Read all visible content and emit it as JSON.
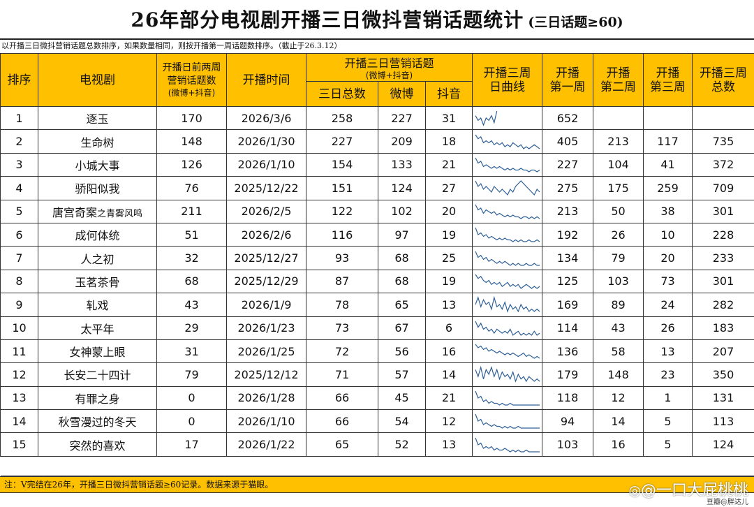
{
  "title": {
    "main": "26年部分电视剧开播三日微抖营销话题统计",
    "sub": "(三日话题≥60)"
  },
  "subtitle": "以开播三日微抖营销话题总数排序，如果数量相同，则按开播第一周话题数排序。（截止于26.3.12）",
  "headers": {
    "rank": "排序",
    "drama": "电视剧",
    "pre_line1": "开播日前两周",
    "pre_line2": "营销话题数",
    "pre_line3": "(微博+抖音)",
    "air_date": "开播时间",
    "three_day_group": "开播三日营销话题",
    "three_day_group_sub": "(微博+抖音)",
    "three_day_total": "三日总数",
    "weibo": "微博",
    "douyin": "抖音",
    "curve_line1": "开播三周",
    "curve_line2": "日曲线",
    "week1_line1": "开播",
    "week1_line2": "第一周",
    "week2_line1": "开播",
    "week2_line2": "第二周",
    "week3_line1": "开播",
    "week3_line2": "第三周",
    "total3_line1": "开播三周",
    "total3_line2": "总数"
  },
  "rows": [
    {
      "rank": "1",
      "name": "逐玉",
      "name_suffix": "",
      "pre": "170",
      "date": "2026/3/6",
      "total": "258",
      "weibo": "227",
      "douyin": "31",
      "curve": [
        6,
        4,
        5,
        2,
        5,
        4,
        6,
        3,
        8
      ],
      "w1": "652",
      "w2": "",
      "w3": "",
      "sum": ""
    },
    {
      "rank": "2",
      "name": "生命树",
      "name_suffix": "",
      "pre": "148",
      "date": "2026/1/30",
      "total": "227",
      "weibo": "209",
      "douyin": "18",
      "curve": [
        9,
        7,
        8,
        5,
        6,
        5,
        6,
        4,
        5,
        4,
        5,
        3,
        4,
        3,
        5,
        4,
        3,
        4,
        2,
        3,
        2,
        3,
        4,
        3,
        2
      ],
      "w1": "405",
      "w2": "213",
      "w3": "117",
      "sum": "735"
    },
    {
      "rank": "3",
      "name": "小城大事",
      "name_suffix": "",
      "pre": "126",
      "date": "2026/1/10",
      "total": "154",
      "weibo": "133",
      "douyin": "21",
      "curve": [
        9,
        6,
        7,
        4,
        5,
        4,
        3,
        4,
        3,
        4,
        3,
        2,
        3,
        2,
        3,
        2,
        2,
        3,
        2,
        2,
        1,
        2,
        2,
        1,
        2
      ],
      "w1": "227",
      "w2": "104",
      "w3": "41",
      "sum": "372"
    },
    {
      "rank": "4",
      "name": "骄阳似我",
      "name_suffix": "",
      "pre": "76",
      "date": "2025/12/22",
      "total": "151",
      "weibo": "124",
      "douyin": "27",
      "curve": [
        8,
        6,
        7,
        5,
        6,
        5,
        4,
        6,
        5,
        4,
        5,
        4,
        3,
        5,
        4,
        6,
        7,
        8,
        7,
        6,
        5,
        4,
        3,
        5,
        4
      ],
      "w1": "275",
      "w2": "175",
      "w3": "259",
      "sum": "709"
    },
    {
      "rank": "5",
      "name": "唐宫奇案",
      "name_suffix": "之青雾风鸣",
      "pre": "211",
      "date": "2026/2/5",
      "total": "122",
      "weibo": "102",
      "douyin": "20",
      "curve": [
        9,
        6,
        7,
        4,
        6,
        5,
        4,
        5,
        3,
        4,
        3,
        2,
        3,
        2,
        3,
        2,
        2,
        1,
        2,
        2,
        1,
        2,
        1,
        2,
        1
      ],
      "w1": "213",
      "w2": "50",
      "w3": "38",
      "sum": "301"
    },
    {
      "rank": "6",
      "name": "成何体统",
      "name_suffix": "",
      "pre": "51",
      "date": "2026/2/6",
      "total": "116",
      "weibo": "97",
      "douyin": "19",
      "curve": [
        9,
        5,
        6,
        4,
        5,
        3,
        4,
        3,
        2,
        3,
        2,
        3,
        2,
        2,
        1,
        2,
        1,
        2,
        1,
        1,
        2,
        1,
        1,
        2,
        1
      ],
      "w1": "192",
      "w2": "26",
      "w3": "10",
      "sum": "228"
    },
    {
      "rank": "7",
      "name": "人之初",
      "name_suffix": "",
      "pre": "32",
      "date": "2025/12/27",
      "total": "93",
      "weibo": "68",
      "douyin": "25",
      "curve": [
        9,
        6,
        7,
        5,
        6,
        4,
        5,
        4,
        3,
        4,
        3,
        4,
        3,
        2,
        3,
        2,
        3,
        2,
        2,
        3,
        2,
        2,
        3,
        2,
        2
      ],
      "w1": "134",
      "w2": "79",
      "w3": "20",
      "sum": "233"
    },
    {
      "rank": "8",
      "name": "玉茗茶骨",
      "name_suffix": "",
      "pre": "68",
      "date": "2025/12/29",
      "total": "87",
      "weibo": "68",
      "douyin": "19",
      "curve": [
        9,
        7,
        8,
        6,
        5,
        6,
        4,
        5,
        4,
        5,
        3,
        4,
        5,
        3,
        4,
        3,
        4,
        2,
        3,
        4,
        3,
        2,
        3,
        2,
        3
      ],
      "w1": "125",
      "w2": "103",
      "w3": "73",
      "sum": "301"
    },
    {
      "rank": "9",
      "name": "轧戏",
      "name_suffix": "",
      "pre": "43",
      "date": "2026/1/9",
      "total": "78",
      "weibo": "65",
      "douyin": "13",
      "curve": [
        5,
        8,
        4,
        7,
        5,
        6,
        3,
        8,
        4,
        5,
        3,
        6,
        2,
        5,
        3,
        4,
        2,
        5,
        3,
        4,
        2,
        3,
        2,
        3,
        2
      ],
      "w1": "169",
      "w2": "89",
      "w3": "24",
      "sum": "282"
    },
    {
      "rank": "10",
      "name": "太平年",
      "name_suffix": "",
      "pre": "29",
      "date": "2026/1/23",
      "total": "73",
      "weibo": "67",
      "douyin": "6",
      "curve": [
        9,
        6,
        8,
        5,
        6,
        4,
        5,
        3,
        5,
        4,
        3,
        4,
        3,
        5,
        2,
        3,
        4,
        2,
        3,
        2,
        3,
        2,
        4,
        2,
        3
      ],
      "w1": "114",
      "w2": "43",
      "w3": "26",
      "sum": "183"
    },
    {
      "rank": "11",
      "name": "女神蒙上眼",
      "name_suffix": "",
      "pre": "31",
      "date": "2026/1/25",
      "total": "72",
      "weibo": "56",
      "douyin": "16",
      "curve": [
        9,
        7,
        8,
        6,
        7,
        5,
        6,
        5,
        4,
        5,
        4,
        3,
        4,
        3,
        4,
        3,
        2,
        3,
        4,
        2,
        3,
        2,
        1,
        2,
        1
      ],
      "w1": "136",
      "w2": "58",
      "w3": "13",
      "sum": "207"
    },
    {
      "rank": "12",
      "name": "长安二十四计",
      "name_suffix": "",
      "pre": "79",
      "date": "2025/12/12",
      "total": "71",
      "weibo": "57",
      "douyin": "14",
      "curve": [
        8,
        5,
        9,
        4,
        8,
        6,
        9,
        5,
        8,
        4,
        7,
        5,
        6,
        4,
        7,
        3,
        6,
        4,
        5,
        3,
        5,
        4,
        3,
        4,
        3
      ],
      "w1": "179",
      "w2": "148",
      "w3": "23",
      "sum": "350"
    },
    {
      "rank": "13",
      "name": "有罪之身",
      "name_suffix": "",
      "pre": "0",
      "date": "2026/1/28",
      "total": "66",
      "weibo": "45",
      "douyin": "21",
      "curve": [
        9,
        5,
        6,
        3,
        4,
        2,
        3,
        2,
        2,
        1,
        2,
        1,
        1,
        2,
        1,
        1,
        1,
        1,
        1,
        1,
        1,
        1,
        1,
        1,
        1
      ],
      "w1": "118",
      "w2": "12",
      "w3": "1",
      "sum": "131"
    },
    {
      "rank": "14",
      "name": "秋雪漫过的冬天",
      "name_suffix": "",
      "pre": "0",
      "date": "2026/1/10",
      "total": "66",
      "weibo": "54",
      "douyin": "12",
      "curve": [
        9,
        5,
        6,
        3,
        4,
        3,
        2,
        3,
        2,
        2,
        1,
        2,
        1,
        2,
        1,
        1,
        2,
        1,
        1,
        1,
        1,
        1,
        1,
        1,
        1
      ],
      "w1": "94",
      "w2": "14",
      "w3": "5",
      "sum": "113"
    },
    {
      "rank": "15",
      "name": "突然的喜欢",
      "name_suffix": "",
      "pre": "17",
      "date": "2026/1/22",
      "total": "65",
      "weibo": "52",
      "douyin": "13",
      "curve": [
        9,
        5,
        6,
        3,
        4,
        3,
        4,
        2,
        3,
        2,
        2,
        3,
        2,
        1,
        2,
        1,
        2,
        1,
        1,
        2,
        1,
        1,
        1,
        1,
        1
      ],
      "w1": "103",
      "w2": "16",
      "w3": "5",
      "sum": "124"
    }
  ],
  "footer": "注：V完结在26年，开播三日微抖营销话题≥60记录。数据来源于猫眼。",
  "watermark": "@一口大屁桃桃",
  "credit": "豆瓣@胖达儿",
  "colors": {
    "header_bg": "#ffc000",
    "footer_bg": "#ffc000",
    "curve": "#2e5f97"
  }
}
